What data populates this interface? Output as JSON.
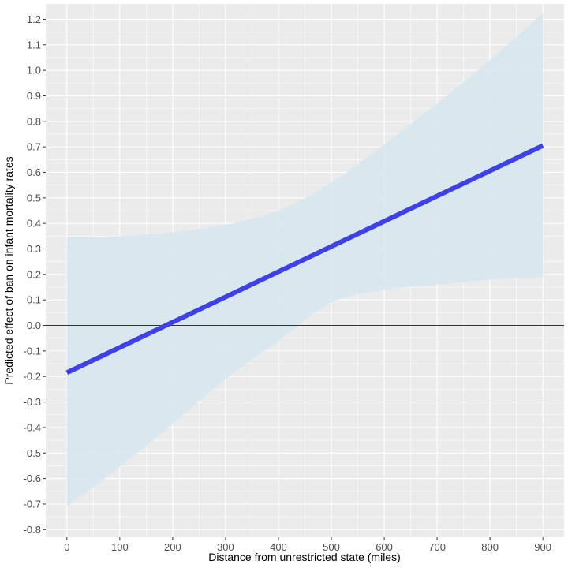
{
  "chart_data": {
    "type": "line",
    "title": "",
    "xlabel": "Distance from unrestricted state (miles)",
    "ylabel": "Predicted effect of ban on infant mortality rates",
    "xlim": [
      -40,
      940
    ],
    "ylim": [
      -0.83,
      1.26
    ],
    "x_ticks": [
      0,
      100,
      200,
      300,
      400,
      500,
      600,
      700,
      800,
      900
    ],
    "y_ticks": [
      -0.8,
      -0.7,
      -0.6,
      -0.5,
      -0.4,
      -0.3,
      -0.2,
      -0.1,
      0.0,
      0.1,
      0.2,
      0.3,
      0.4,
      0.5,
      0.6,
      0.7,
      0.8,
      0.9,
      1.0,
      1.1,
      1.2
    ],
    "y_tick_labels": [
      "-0.8",
      "-0.7",
      "-0.6",
      "-0.5",
      "-0.4",
      "-0.3",
      "-0.2",
      "-0.1",
      "0.0",
      "0.1",
      "0.2",
      "0.3",
      "0.4",
      "0.5",
      "0.6",
      "0.7",
      "0.8",
      "0.9",
      "1.0",
      "1.1",
      "1.2"
    ],
    "grid": true,
    "reference_line_y": 0,
    "series": [
      {
        "x": [
          0,
          900
        ],
        "y": [
          -0.185,
          0.705
        ],
        "color": "#4040e8"
      }
    ],
    "confidence_band": {
      "x": [
        0,
        100,
        200,
        300,
        400,
        500,
        600,
        700,
        800,
        900
      ],
      "lower": [
        -0.71,
        -0.555,
        -0.385,
        -0.21,
        -0.06,
        0.09,
        0.14,
        0.16,
        0.18,
        0.19
      ],
      "upper": [
        0.345,
        0.35,
        0.365,
        0.395,
        0.45,
        0.56,
        0.71,
        0.87,
        1.04,
        1.225
      ],
      "color": "#d6e6ef"
    },
    "colors": {
      "panel": "#ebebeb",
      "grid_major": "#ffffff",
      "reference": "#333333"
    }
  }
}
